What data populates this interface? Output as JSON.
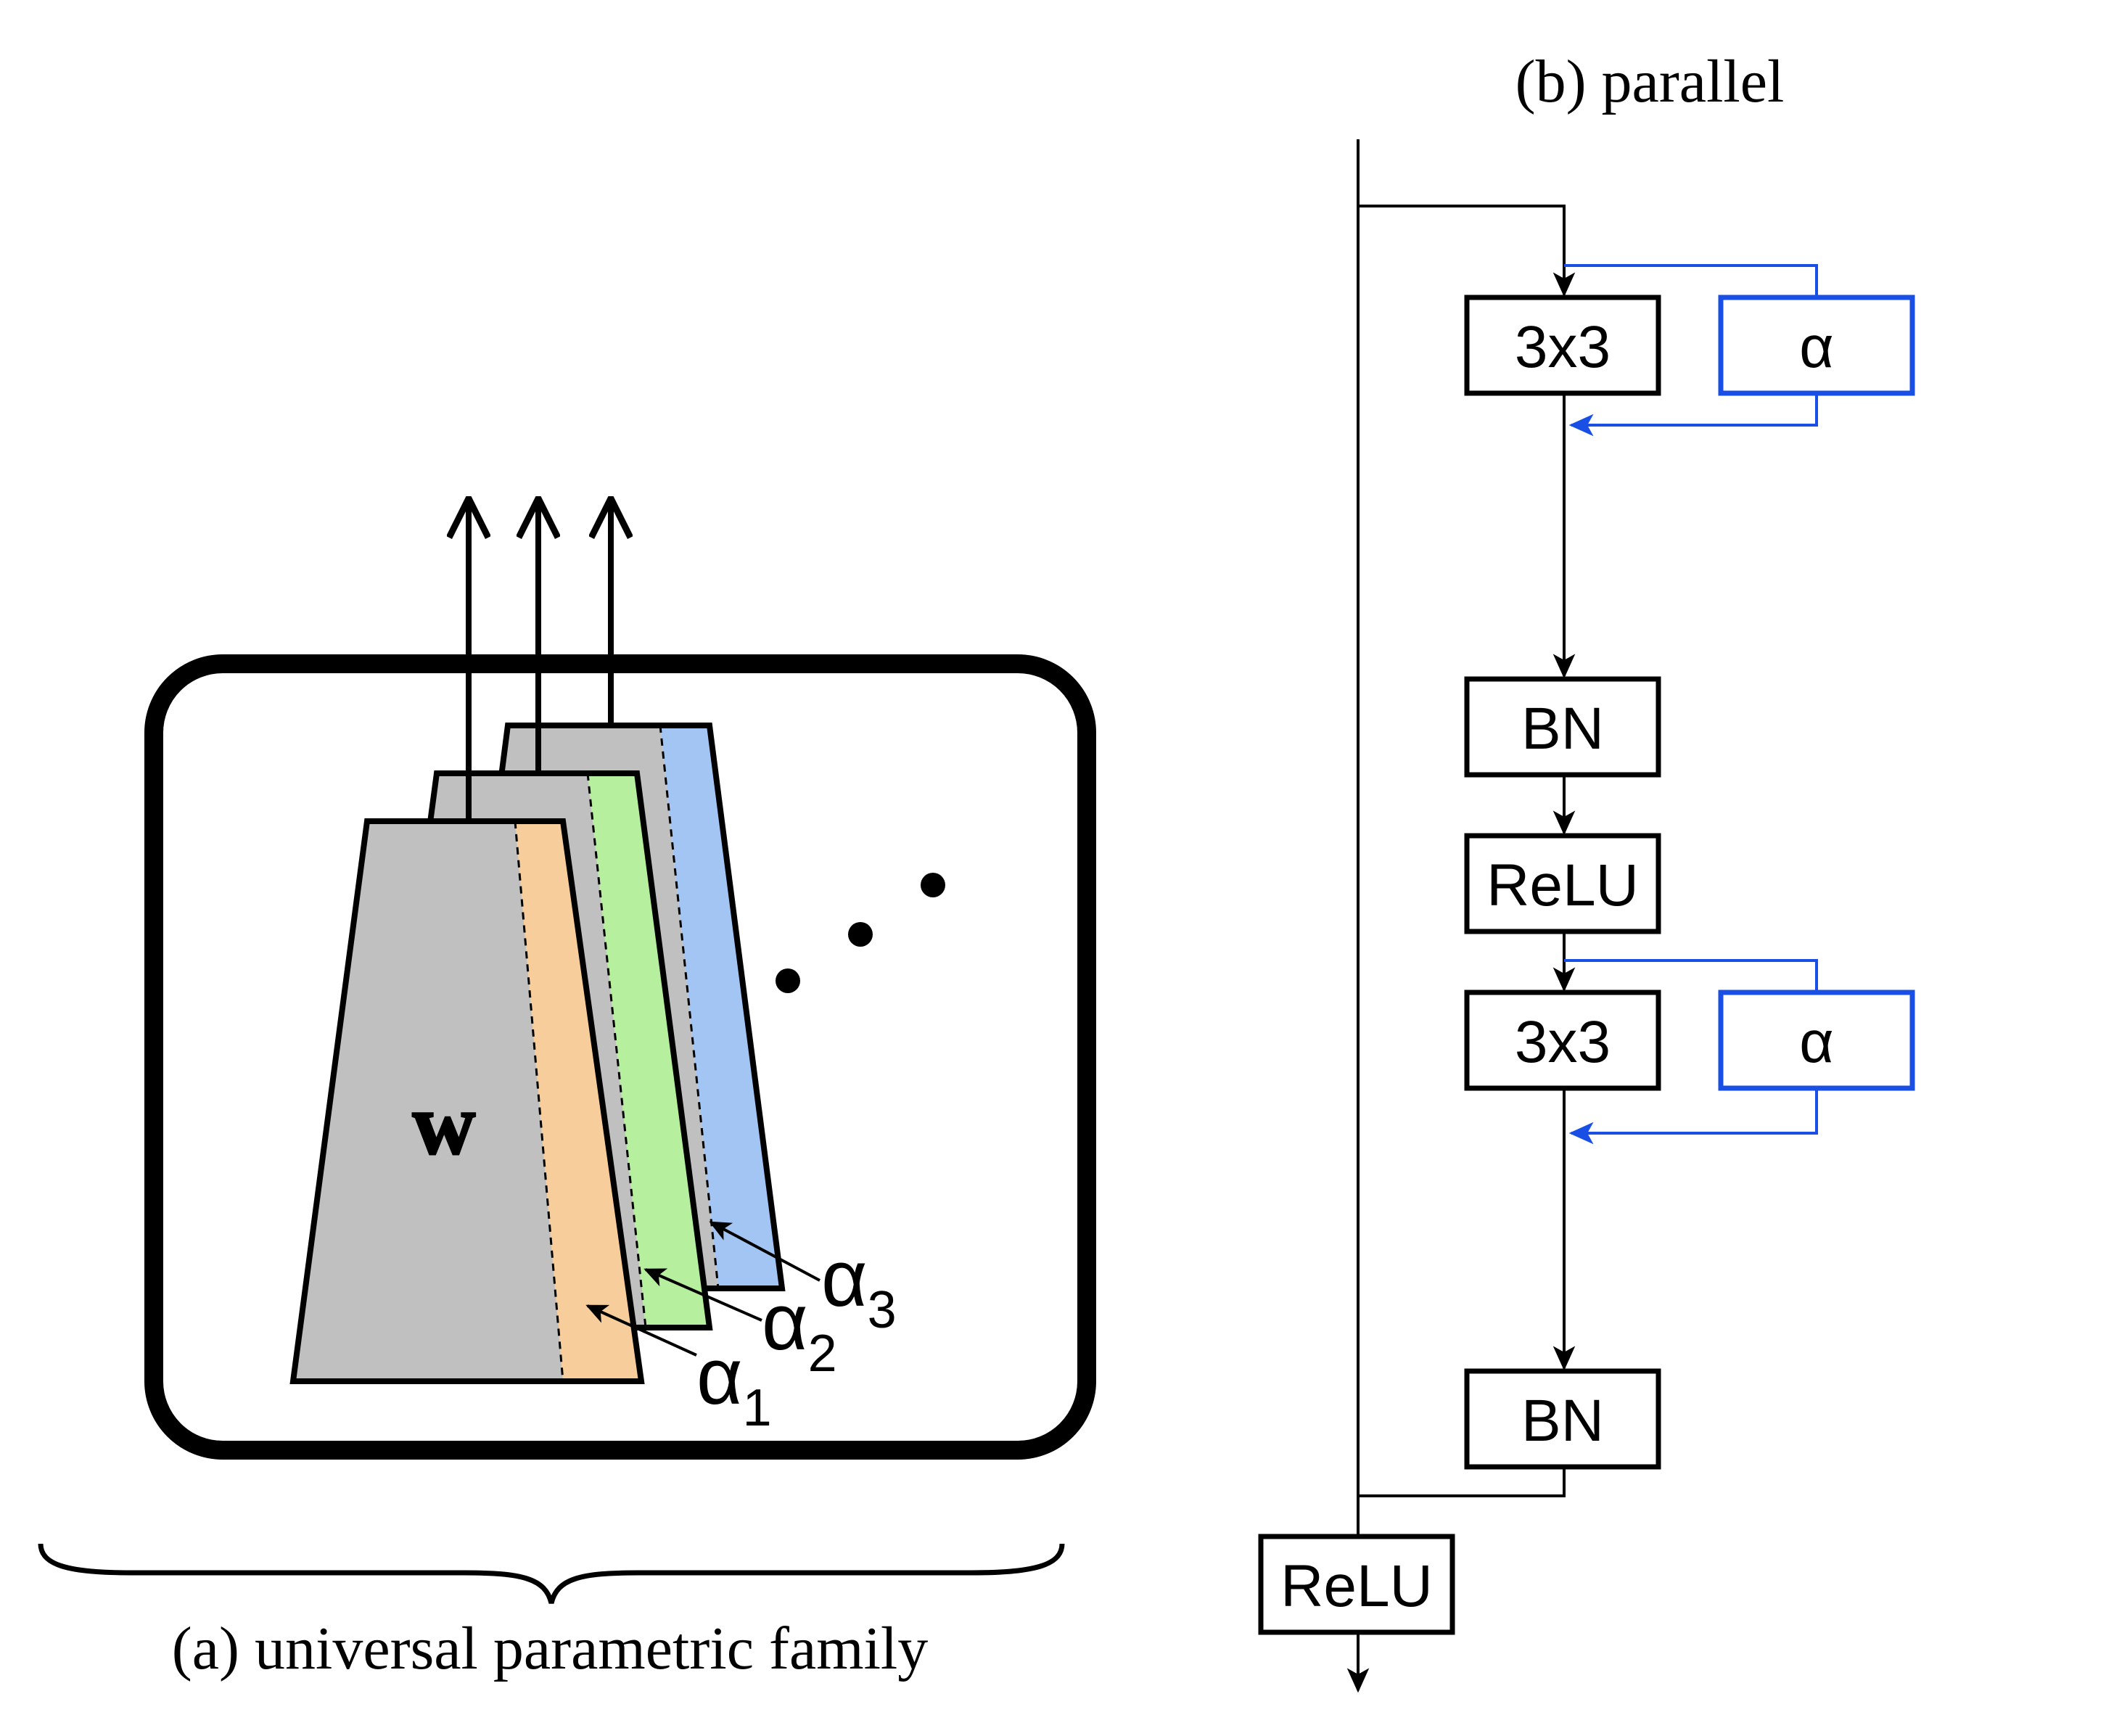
{
  "panel_a": {
    "caption": "(a) universal parametric family",
    "weight_label": "w",
    "alpha_symbol": "α",
    "alpha_subscripts": [
      "1",
      "2",
      "3"
    ],
    "ellipsis": "• • •"
  },
  "panel_b": {
    "caption": "(b) parallel",
    "blocks": {
      "conv1": "3x3",
      "adapter1": "α",
      "bn1": "BN",
      "relu1": "ReLU",
      "conv2": "3x3",
      "adapter2": "α",
      "bn2": "BN",
      "relu_out": "ReLU"
    }
  },
  "colors": {
    "weight_gray": "#c0c0c0",
    "alpha1_orange": "#f7cd9c",
    "alpha2_green": "#b6f09f",
    "alpha3_blue": "#a3c5f4",
    "adapter_blue": "#1a4fe6",
    "stroke": "#000000"
  }
}
